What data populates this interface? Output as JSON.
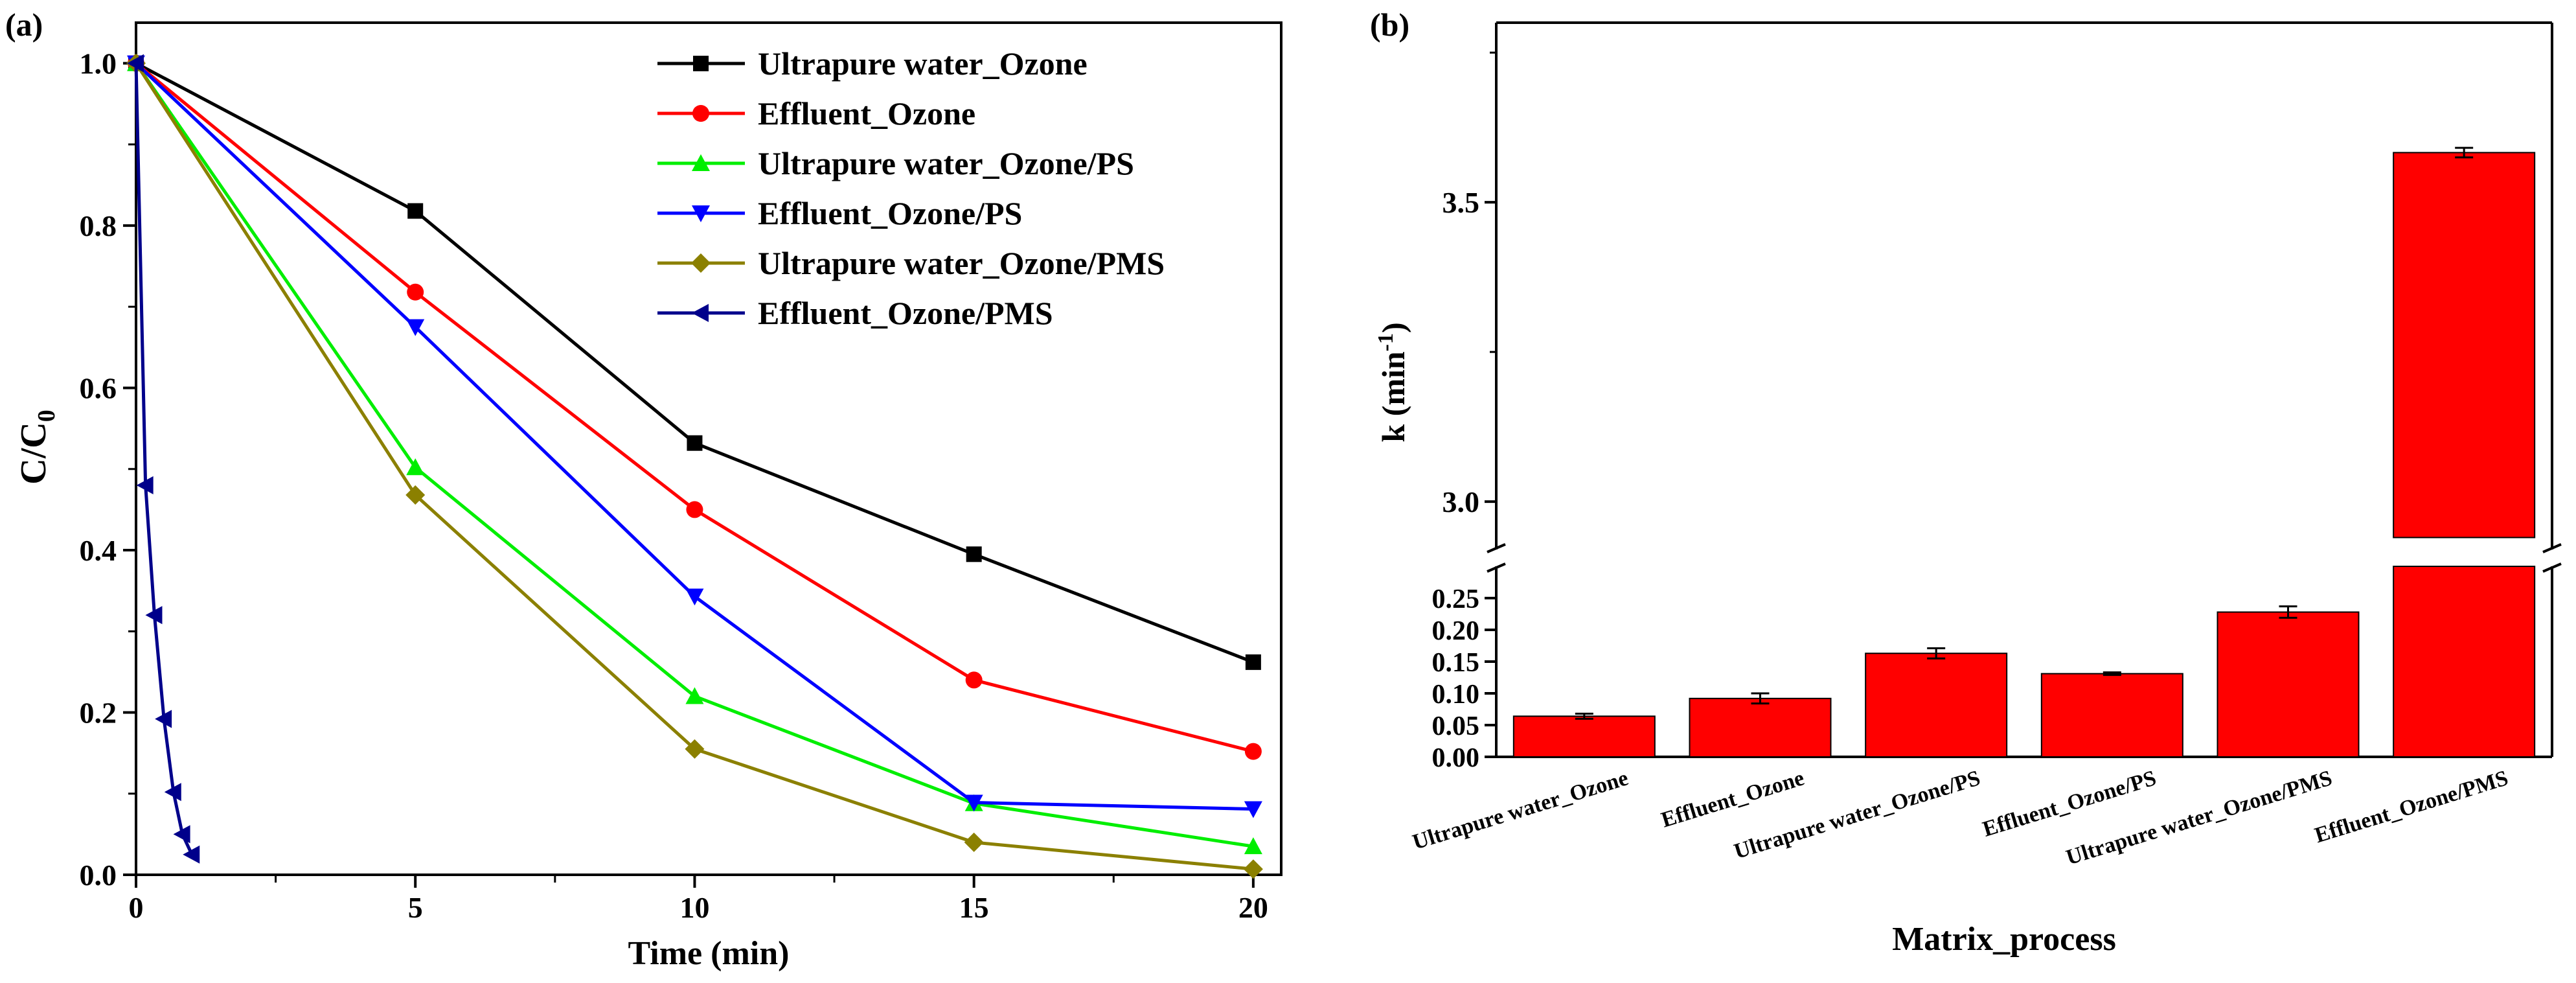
{
  "figure": {
    "panel_a_tag": "(a)",
    "panel_b_tag": "(b)"
  },
  "chart_data": [
    {
      "id": "a",
      "type": "line",
      "xlabel": "Time (min)",
      "ylabel_main": "C/C",
      "ylabel_sub": "0",
      "xlim": [
        0,
        20.5
      ],
      "ylim": [
        0,
        1.05
      ],
      "xticks": [
        0,
        5,
        10,
        15,
        20
      ],
      "xtick_labels": [
        "0",
        "5",
        "10",
        "15",
        "20"
      ],
      "yticks": [
        0.0,
        0.2,
        0.4,
        0.6,
        0.8,
        1.0
      ],
      "ytick_labels": [
        "0.0",
        "0.2",
        "0.4",
        "0.6",
        "0.8",
        "1.0"
      ],
      "legend_position": "top-right",
      "series": [
        {
          "name": "Ultrapure water_Ozone",
          "color": "#000000",
          "marker": "square",
          "x": [
            0,
            5,
            10,
            15,
            20
          ],
          "y": [
            1.0,
            0.818,
            0.532,
            0.395,
            0.262
          ]
        },
        {
          "name": "Effluent_Ozone",
          "color": "#ff0000",
          "marker": "circle",
          "x": [
            0,
            5,
            10,
            15,
            20
          ],
          "y": [
            1.0,
            0.718,
            0.45,
            0.24,
            0.152
          ]
        },
        {
          "name": "Ultrapure water_Ozone/PS",
          "color": "#00ee00",
          "marker": "triangle-up",
          "x": [
            0,
            5,
            10,
            15,
            20
          ],
          "y": [
            1.0,
            0.502,
            0.22,
            0.088,
            0.035
          ]
        },
        {
          "name": "Effluent_Ozone/PS",
          "color": "#0000ff",
          "marker": "triangle-down",
          "x": [
            0,
            5,
            10,
            15,
            20
          ],
          "y": [
            1.0,
            0.675,
            0.343,
            0.089,
            0.081
          ]
        },
        {
          "name": "Ultrapure water_Ozone/PMS",
          "color": "#8b8000",
          "marker": "diamond",
          "x": [
            0,
            5,
            10,
            15,
            20
          ],
          "y": [
            1.0,
            0.468,
            0.155,
            0.04,
            0.007
          ]
        },
        {
          "name": "Effluent_Ozone/PMS",
          "color": "#00008b",
          "marker": "triangle-left",
          "x": [
            0,
            0.17,
            0.33,
            0.5,
            0.67,
            0.83,
            1.0
          ],
          "y": [
            1.0,
            0.48,
            0.32,
            0.192,
            0.102,
            0.05,
            0.025
          ]
        }
      ]
    },
    {
      "id": "b",
      "type": "bar",
      "title": "",
      "xlabel": "Matrix_process",
      "ylabel_main": "k (min",
      "ylabel_sup": "-1",
      "ylabel_end": ")",
      "color": "#ff0000",
      "axis_break": {
        "lower_range": [
          0,
          0.3
        ],
        "upper_range": [
          2.92,
          3.8
        ]
      },
      "lower_yticks": [
        0.0,
        0.05,
        0.1,
        0.15,
        0.2,
        0.25
      ],
      "lower_ytick_labels": [
        "0.00",
        "0.05",
        "0.10",
        "0.15",
        "0.20",
        "0.25"
      ],
      "upper_yticks": [
        3.0,
        3.5
      ],
      "upper_ytick_labels": [
        "3.0",
        "3.5"
      ],
      "categories": [
        "Ultrapure water_Ozone",
        "Effluent_Ozone",
        "Ultrapure water_Ozone/PS",
        "Effluent_Ozone/PS",
        "Ultrapure water_Ozone/PMS",
        "Effluent_Ozone/PMS"
      ],
      "values": [
        0.064,
        0.092,
        0.163,
        0.131,
        0.228,
        3.583
      ],
      "errors": [
        0.004,
        0.008,
        0.008,
        0.002,
        0.009,
        0.008
      ]
    }
  ]
}
